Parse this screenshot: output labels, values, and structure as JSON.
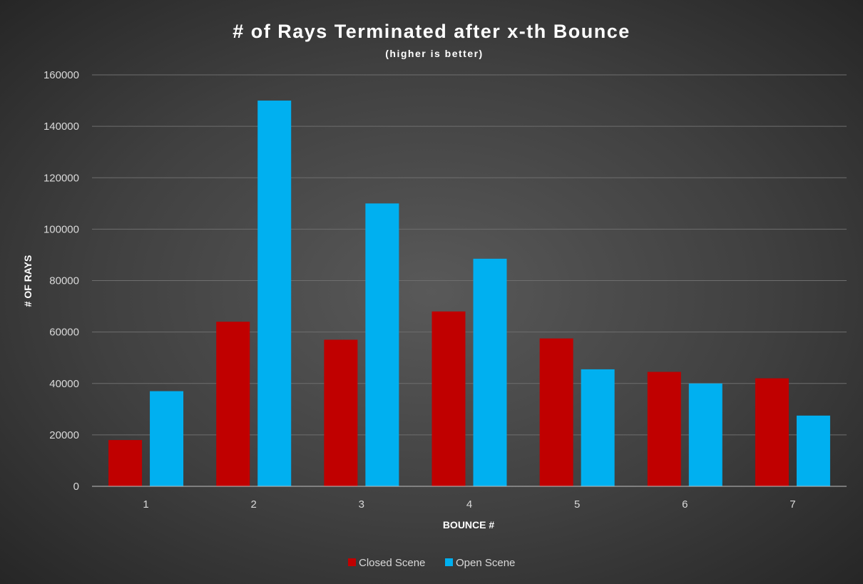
{
  "chart_data": {
    "type": "bar",
    "title": "# of Rays Terminated after x-th Bounce",
    "subtitle": "(higher is better)",
    "xlabel": "BOUNCE #",
    "ylabel": "# OF RAYS",
    "categories": [
      "1",
      "2",
      "3",
      "4",
      "5",
      "6",
      "7"
    ],
    "ylim": [
      0,
      160000
    ],
    "yticks": [
      0,
      20000,
      40000,
      60000,
      80000,
      100000,
      120000,
      140000,
      160000
    ],
    "grid": true,
    "legend_position": "bottom",
    "series": [
      {
        "name": "Closed Scene",
        "color": "#c00000",
        "values": [
          18000,
          64000,
          57000,
          68000,
          57500,
          44500,
          42000
        ]
      },
      {
        "name": "Open Scene",
        "color": "#00b0f0",
        "values": [
          37000,
          150000,
          110000,
          88500,
          45500,
          40000,
          27500
        ]
      }
    ]
  }
}
